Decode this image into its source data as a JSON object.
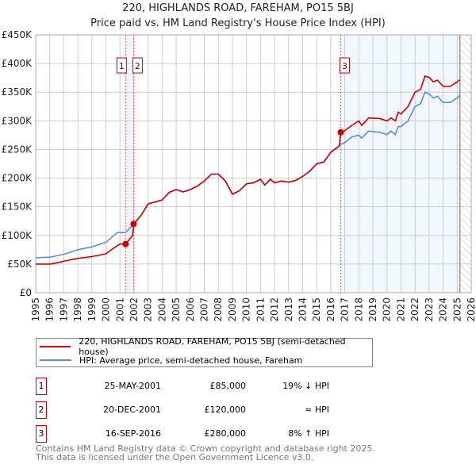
{
  "title": "220, HIGHLANDS ROAD, FAREHAM, PO15 5BJ",
  "subtitle": "Price paid vs. HM Land Registry's House Price Index (HPI)",
  "chart_data": {
    "type": "line",
    "title": "220, HIGHLANDS ROAD, FAREHAM, PO15 5BJ",
    "ylim": [
      0,
      450000
    ],
    "xlim": [
      1995,
      2026
    ],
    "yticks": [
      "£0",
      "£50K",
      "£100K",
      "£150K",
      "£200K",
      "£250K",
      "£300K",
      "£350K",
      "£400K",
      "£450K"
    ],
    "xticks": [
      "1995",
      "1996",
      "1997",
      "1998",
      "1999",
      "2000",
      "2001",
      "2002",
      "2003",
      "2004",
      "2005",
      "2006",
      "2007",
      "2008",
      "2009",
      "2010",
      "2011",
      "2012",
      "2013",
      "2014",
      "2015",
      "2016",
      "2017",
      "2018",
      "2019",
      "2020",
      "2021",
      "2022",
      "2023",
      "2024",
      "2025",
      "2026"
    ],
    "series": [
      {
        "name": "220, HIGHLANDS ROAD, FAREHAM, PO15 5BJ (semi-detached house)",
        "color": "#cc0000",
        "x": [
          1995,
          1996,
          1996.5,
          1997,
          1998,
          1999,
          2000,
          2000.5,
          2001,
          2001.4,
          2001.9,
          2001.97,
          2002.5,
          2003,
          2004,
          2004.5,
          2005,
          2005.5,
          2006,
          2006.5,
          2007,
          2007.5,
          2008,
          2008.5,
          2009,
          2009.5,
          2010,
          2010.5,
          2011,
          2011.3,
          2011.7,
          2012,
          2012.5,
          2013,
          2013.5,
          2014,
          2014.5,
          2015,
          2015.5,
          2016,
          2016.6,
          2016.71,
          2017,
          2017.5,
          2018,
          2018.2,
          2018.7,
          2019.5,
          2020,
          2020.3,
          2020.6,
          2020.8,
          2021,
          2021.5,
          2022,
          2022.4,
          2022.7,
          2023,
          2023.3,
          2023.6,
          2024,
          2024.5,
          2025,
          2025.2
        ],
        "y": [
          50,
          50,
          52,
          55,
          60,
          63,
          68,
          77,
          85,
          85,
          100,
          120,
          135,
          155,
          162,
          175,
          180,
          176,
          180,
          186,
          195,
          207,
          207,
          195,
          172,
          178,
          190,
          192,
          198,
          188,
          198,
          192,
          195,
          193,
          196,
          203,
          212,
          225,
          228,
          245,
          256,
          280,
          283,
          292,
          300,
          292,
          305,
          304,
          300,
          305,
          300,
          315,
          312,
          325,
          350,
          355,
          378,
          376,
          368,
          371,
          360,
          360,
          368,
          372
        ]
      },
      {
        "name": "HPI: Average price, semi-detached house, Fareham",
        "color": "#5b8ed6",
        "x": [
          1995,
          1996,
          1997,
          1998,
          1999,
          2000,
          2000.8,
          2001.4,
          2001.97,
          2002.5,
          2003,
          2004,
          2004.5,
          2005,
          2005.5,
          2006,
          2006.5,
          2007,
          2007.5,
          2008,
          2008.5,
          2009,
          2009.5,
          2010,
          2010.5,
          2011,
          2011.3,
          2011.7,
          2012,
          2012.5,
          2013,
          2013.5,
          2014,
          2014.5,
          2015,
          2015.5,
          2016,
          2016.71,
          2017,
          2017.5,
          2018,
          2018.2,
          2018.7,
          2019.5,
          2020,
          2020.3,
          2020.6,
          2020.8,
          2021,
          2021.5,
          2022,
          2022.4,
          2022.7,
          2023,
          2023.3,
          2023.6,
          2024,
          2024.5,
          2025,
          2025.2
        ],
        "y": [
          61,
          62,
          67,
          75,
          80,
          88,
          105,
          105,
          120,
          135,
          155,
          162,
          175,
          180,
          176,
          180,
          186,
          195,
          207,
          207,
          195,
          172,
          178,
          190,
          192,
          198,
          188,
          198,
          192,
          195,
          193,
          196,
          203,
          212,
          225,
          228,
          245,
          259,
          262,
          272,
          275,
          270,
          282,
          280,
          276,
          282,
          276,
          290,
          290,
          300,
          325,
          330,
          350,
          347,
          340,
          343,
          332,
          332,
          340,
          345
        ]
      }
    ],
    "sales": [
      {
        "label": "1",
        "x": 2001.4,
        "y": 85
      },
      {
        "label": "2",
        "x": 2001.97,
        "y": 120
      },
      {
        "label": "3",
        "x": 2016.71,
        "y": 280
      }
    ],
    "grid": true,
    "legend": "bottom"
  },
  "legend": [
    "220, HIGHLANDS ROAD, FAREHAM, PO15 5BJ (semi-detached house)",
    "HPI: Average price, semi-detached house, Fareham"
  ],
  "transactions": [
    {
      "n": "1",
      "date": "25-MAY-2001",
      "price": "£85,000",
      "hpi": "19% ↓ HPI"
    },
    {
      "n": "2",
      "date": "20-DEC-2001",
      "price": "£120,000",
      "hpi": "≈ HPI"
    },
    {
      "n": "3",
      "date": "16-SEP-2016",
      "price": "£280,000",
      "hpi": "8% ↑ HPI"
    }
  ],
  "footer": [
    "Contains HM Land Registry data © Crown copyright and database right 2025.",
    "This data is licensed under the Open Government Licence v3.0."
  ]
}
